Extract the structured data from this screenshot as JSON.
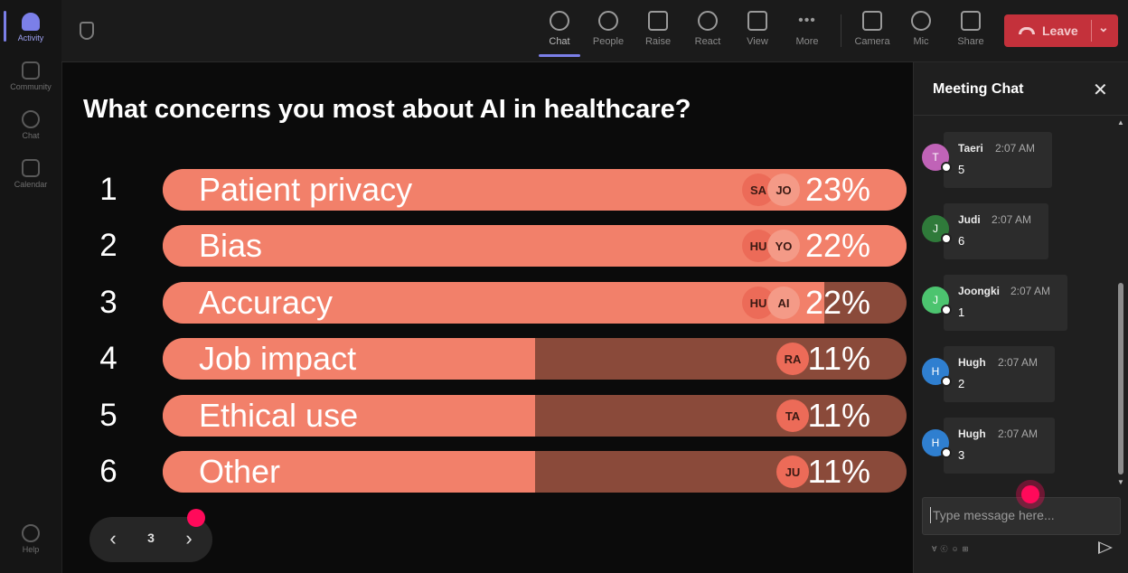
{
  "rail": {
    "items": [
      {
        "label": "Activity",
        "icon": "bell-icon",
        "active": true
      },
      {
        "label": "Community",
        "icon": "community-icon"
      },
      {
        "label": "Chat",
        "icon": "chat-icon"
      },
      {
        "label": "Calendar",
        "icon": "calendar-icon"
      }
    ],
    "help_label": "Help"
  },
  "toolbar": {
    "chat": "Chat",
    "people": "People",
    "raise": "Raise",
    "react": "React",
    "view": "View",
    "more": "More",
    "camera": "Camera",
    "mic": "Mic",
    "share": "Share",
    "leave": "Leave"
  },
  "poll": {
    "title": "What concerns you most about AI in healthcare?",
    "fill_color": "#f2806a",
    "track_color": "#8a4a3a",
    "options": [
      {
        "rank": "1",
        "label": "Patient privacy",
        "percent": "23%",
        "fill_fraction": 1.0,
        "avatars": [
          "SA",
          "JO"
        ]
      },
      {
        "rank": "2",
        "label": "Bias",
        "percent": "22%",
        "fill_fraction": 1.0,
        "avatars": [
          "HU",
          "YO"
        ]
      },
      {
        "rank": "3",
        "label": "Accuracy",
        "percent": "22%",
        "fill_fraction": 0.89,
        "avatars": [
          "HU",
          "AI"
        ]
      },
      {
        "rank": "4",
        "label": "Job impact",
        "percent": "11%",
        "fill_fraction": 0.5,
        "avatars": [
          "RA"
        ]
      },
      {
        "rank": "5",
        "label": "Ethical use",
        "percent": "11%",
        "fill_fraction": 0.5,
        "avatars": [
          "TA"
        ]
      },
      {
        "rank": "6",
        "label": "Other",
        "percent": "11%",
        "fill_fraction": 0.5,
        "avatars": [
          "JU"
        ]
      }
    ],
    "page": "3"
  },
  "chat": {
    "title": "Meeting Chat",
    "messages": [
      {
        "initial": "T",
        "name": "Taeri",
        "time": "2:07 AM",
        "text": "5",
        "color": "#c063b7"
      },
      {
        "initial": "J",
        "name": "Judi",
        "time": "2:07 AM",
        "text": "6",
        "color": "#2f7a3a"
      },
      {
        "initial": "J",
        "name": "Joongki",
        "time": "2:07 AM",
        "text": "1",
        "color": "#4cc46f"
      },
      {
        "initial": "H",
        "name": "Hugh",
        "time": "2:07 AM",
        "text": "2",
        "color": "#2f7fd0"
      },
      {
        "initial": "H",
        "name": "Hugh",
        "time": "2:07 AM",
        "text": "3",
        "color": "#2f7fd0"
      }
    ],
    "input_placeholder": "Type message here..."
  }
}
